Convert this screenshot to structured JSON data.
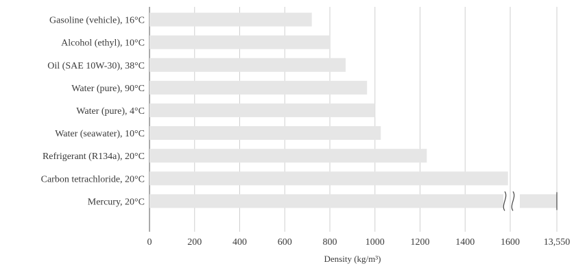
{
  "chart_data": {
    "type": "bar",
    "orientation": "horizontal",
    "categories": [
      "Gasoline (vehicle), 16°C",
      "Alcohol (ethyl), 10°C",
      "Oil (SAE 10W-30), 38°C",
      "Water (pure), 90°C",
      "Water (pure), 4°C",
      "Water (seawater), 10°C",
      "Refrigerant (R134a), 20°C",
      "Carbon tetrachloride, 20°C",
      "Mercury, 20°C"
    ],
    "values": [
      720,
      800,
      870,
      965,
      1000,
      1026,
      1230,
      1590,
      13550
    ],
    "xlabel": "Density (kg/m³)",
    "ylabel": "",
    "title": "",
    "xlim": [
      0,
      13550
    ],
    "axis_break": [
      1600,
      13550
    ],
    "x_ticks": [
      "0",
      "200",
      "400",
      "600",
      "800",
      "1000",
      "1200",
      "1400",
      "1600",
      "13,550"
    ],
    "x_tick_values": [
      0,
      200,
      400,
      600,
      800,
      1000,
      1200,
      1400,
      1600,
      13550
    ],
    "grid": true,
    "legend": "none",
    "bar_color": "#e6e6e6",
    "grid_color": "#cfcfcf",
    "text_color": "#3a3a3a"
  }
}
